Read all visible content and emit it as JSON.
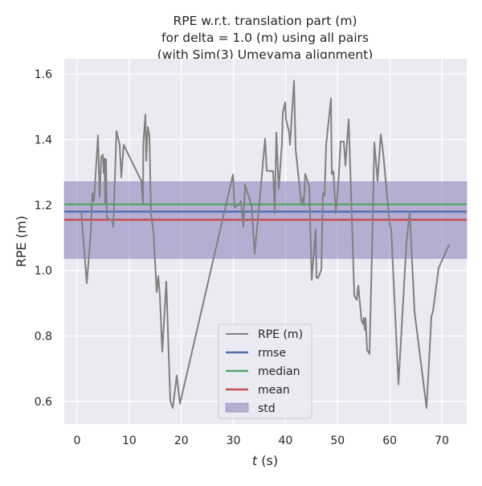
{
  "chart_data": {
    "type": "line",
    "title": [
      "RPE w.r.t. translation part (m)",
      "for delta = 1.0 (m) using all pairs",
      "(with Sim(3) Umeyama alignment)"
    ],
    "xlabel_italic": "t",
    "xlabel_rest": " (s)",
    "ylabel": "RPE (m)",
    "xlim": [
      -2.47,
      74.78
    ],
    "ylim": [
      0.531,
      1.647
    ],
    "xticks": [
      0,
      10,
      20,
      30,
      40,
      50,
      60,
      70
    ],
    "yticks": [
      0.6,
      0.8,
      1.0,
      1.2,
      1.4,
      1.6
    ],
    "ytick_labels": [
      "0.6",
      "0.8",
      "1.0",
      "1.2",
      "1.4",
      "1.6"
    ],
    "grid": true,
    "legend_position": "lower-center",
    "series": {
      "name": "RPE (m)",
      "color": "#808080",
      "x": [
        0.77,
        1.23,
        1.85,
        2.62,
        2.93,
        3.24,
        4.01,
        4.32,
        4.63,
        4.93,
        5.09,
        5.24,
        5.4,
        5.55,
        5.7,
        6.32,
        6.78,
        6.94,
        7.55,
        8.17,
        8.48,
        8.94,
        12.33,
        12.64,
        12.7,
        13.1,
        13.26,
        13.57,
        13.88,
        14.18,
        14.65,
        15.26,
        15.57,
        15.88,
        16.34,
        17.11,
        17.58,
        17.88,
        18.35,
        19.12,
        19.73,
        29.91,
        30.22,
        31.14,
        31.45,
        31.91,
        32.22,
        33.46,
        34.07,
        35.15,
        36.08,
        36.39,
        37.62,
        37.93,
        38.24,
        38.7,
        39.32,
        39.47,
        39.93,
        40.09,
        40.7,
        40.86,
        41.63,
        41.94,
        43.02,
        43.32,
        43.48,
        43.79,
        44.56,
        45.02,
        45.79,
        45.94,
        46.25,
        46.87,
        47.18,
        47.49,
        47.8,
        48.72,
        48.88,
        49.18,
        49.65,
        50.11,
        50.57,
        51.19,
        51.5,
        52.11,
        52.73,
        53.19,
        53.65,
        53.96,
        54.58,
        54.89,
        55.04,
        55.2,
        55.35,
        55.66,
        56.12,
        56.74,
        57.05,
        57.66,
        58.28,
        58.74,
        59.98,
        60.28,
        61.67,
        63.2,
        63.83,
        64.75,
        67.07,
        68.0,
        68.3,
        69.38,
        71.39
      ],
      "y": [
        1.182,
        1.089,
        0.961,
        1.114,
        1.236,
        1.212,
        1.413,
        1.224,
        1.347,
        1.354,
        1.298,
        1.342,
        1.204,
        1.34,
        1.163,
        1.155,
        1.155,
        1.133,
        1.426,
        1.384,
        1.285,
        1.384,
        1.273,
        1.204,
        1.389,
        1.477,
        1.335,
        1.438,
        1.413,
        1.17,
        1.121,
        0.934,
        0.983,
        0.922,
        0.752,
        0.966,
        0.745,
        0.602,
        0.58,
        0.679,
        0.593,
        1.293,
        1.192,
        1.202,
        1.212,
        1.133,
        1.263,
        1.2,
        1.052,
        1.236,
        1.403,
        1.305,
        1.303,
        1.175,
        1.421,
        1.249,
        1.389,
        1.482,
        1.514,
        1.462,
        1.421,
        1.384,
        1.58,
        1.371,
        1.207,
        1.222,
        1.2,
        1.295,
        1.256,
        0.971,
        1.126,
        0.978,
        0.978,
        1.003,
        1.236,
        1.229,
        1.384,
        1.526,
        1.295,
        1.303,
        1.175,
        1.261,
        1.394,
        1.394,
        1.32,
        1.462,
        1.163,
        0.924,
        0.91,
        0.954,
        0.848,
        0.836,
        0.855,
        0.819,
        0.855,
        0.757,
        0.745,
        1.158,
        1.391,
        1.273,
        1.416,
        1.359,
        1.143,
        1.126,
        0.652,
        1.082,
        1.18,
        0.875,
        0.58,
        0.86,
        0.875,
        1.008,
        1.079
      ]
    },
    "stats": {
      "rmse": {
        "name": "rmse",
        "value": 1.18,
        "color": "#4c72b0"
      },
      "median": {
        "name": "median",
        "value": 1.202,
        "color": "#55a868"
      },
      "mean": {
        "name": "mean",
        "value": 1.155,
        "color": "#c44e52"
      },
      "std": {
        "name": "std",
        "lower": 1.037,
        "upper": 1.271,
        "color": "#8172b2"
      }
    },
    "legend": [
      "RPE (m)",
      "rmse",
      "median",
      "mean",
      "std"
    ]
  }
}
